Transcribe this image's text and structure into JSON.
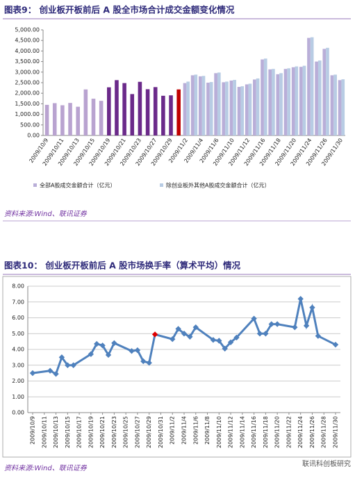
{
  "chart_data": [
    {
      "type": "bar",
      "title": "图表9：   创业板开板前后 A 股全市场合计成交金额变化情况",
      "source": "资料来源:Wind、联讯证券",
      "categories": [
        "2009/10/9",
        null,
        "2009/10/11",
        null,
        "2009/10/13",
        null,
        "2009/10/15",
        null,
        "2009/10/19",
        null,
        "2009/10/21",
        null,
        "2009/10/23",
        null,
        "2009/10/27",
        null,
        "2009/10/29",
        null,
        "2009/11/2",
        null,
        "2009/11/4",
        null,
        "2009/11/6",
        null,
        "2009/11/10",
        null,
        "2009/11/12",
        null,
        "2009/11/16",
        null,
        "2009/11/18",
        null,
        "2009/11/20",
        null,
        "2009/11/24",
        null,
        "2009/11/26",
        null,
        "2009/11/30"
      ],
      "series": [
        {
          "name": "全部A股成交金额合计（亿元）",
          "color": "#b9aed8",
          "values": [
            1450,
            1530,
            1430,
            1540,
            1360,
            2180,
            1740,
            1640,
            2280,
            2620,
            2480,
            1960,
            2540,
            2190,
            2290,
            1880,
            1900,
            2180,
            2480,
            2850,
            2800,
            2500,
            2950,
            2520,
            2600,
            2300,
            2420,
            2650,
            3600,
            3130,
            2900,
            3150,
            3230,
            3250,
            4620,
            3500,
            4100,
            2850,
            2620
          ],
          "point_colors": [
            "#b9a3d0",
            "#b9a3d0",
            "#b9a3d0",
            "#b9a3d0",
            "#b9a3d0",
            "#b9a3d0",
            "#b9a3d0",
            "#b9a3d0",
            "#6b2a8a",
            "#6b2a8a",
            "#6b2a8a",
            "#6b2a8a",
            "#6b2a8a",
            "#6b2a8a",
            "#6b2a8a",
            "#6b2a8a",
            "#6b2a8a",
            "#c00000",
            "#b9aed8",
            "#b9aed8",
            "#b9aed8",
            "#b9aed8",
            "#b9aed8",
            "#b9aed8",
            "#b9aed8",
            "#b9aed8",
            "#b9aed8",
            "#b9aed8",
            "#b9aed8",
            "#b9aed8",
            "#b9aed8",
            "#b9aed8",
            "#b9aed8",
            "#b9aed8",
            "#b9aed8",
            "#b9aed8",
            "#b9aed8",
            "#b9aed8",
            "#b9aed8"
          ]
        },
        {
          "name": "除创业板外其他A股成交金额合计（亿元）",
          "color": "#b8cce4",
          "values": [
            null,
            null,
            null,
            null,
            null,
            null,
            null,
            null,
            null,
            null,
            null,
            null,
            null,
            null,
            null,
            null,
            null,
            null,
            2550,
            2880,
            2820,
            2530,
            2980,
            2550,
            2630,
            2330,
            2450,
            2700,
            3640,
            3150,
            2950,
            3180,
            3270,
            3300,
            4650,
            3550,
            4150,
            2880,
            2660
          ]
        }
      ],
      "ylim": [
        0,
        5000
      ],
      "yticks": [
        {
          "value": 0,
          "label": "0.00"
        },
        {
          "value": 500,
          "label": "500.00"
        },
        {
          "value": 1000,
          "label": "1,000.00"
        },
        {
          "value": 1500,
          "label": "1,500.00"
        },
        {
          "value": 2000,
          "label": "2,000.00"
        },
        {
          "value": 2500,
          "label": "2,500.00"
        },
        {
          "value": 3000,
          "label": "3,000.00"
        },
        {
          "value": 3500,
          "label": "3,500.00"
        },
        {
          "value": 4000,
          "label": "4,000.00"
        },
        {
          "value": 4500,
          "label": "4,500.00"
        },
        {
          "value": 5000,
          "label": "5,000.00"
        }
      ],
      "grid": false
    },
    {
      "type": "line",
      "title": "图表10：   创业板开板前后 A 股市场换手率（算术平均）情况",
      "source": "资料来源:Wind、联讯证券",
      "x": [
        "2009/10/9",
        "2009/10/12",
        "2009/10/13",
        "2009/10/14",
        "2009/10/15",
        "2009/10/16",
        "2009/10/19",
        "2009/10/20",
        "2009/10/21",
        "2009/10/22",
        "2009/10/23",
        "2009/10/26",
        "2009/10/27",
        "2009/10/28",
        "2009/10/29",
        "2009/10/30",
        "2009/11/2",
        "2009/11/3",
        "2009/11/4",
        "2009/11/5",
        "2009/11/6",
        "2009/11/9",
        "2009/11/10",
        "2009/11/11",
        "2009/11/12",
        "2009/11/13",
        "2009/11/16",
        "2009/11/17",
        "2009/11/18",
        "2009/11/19",
        "2009/11/20",
        "2009/11/23",
        "2009/11/24",
        "2009/11/25",
        "2009/11/26",
        "2009/11/27",
        "2009/11/30"
      ],
      "series": [
        {
          "color": "#4f81bd",
          "values": [
            2.5,
            2.65,
            2.45,
            3.5,
            3.0,
            3.0,
            3.7,
            4.35,
            4.25,
            3.65,
            4.4,
            3.9,
            3.95,
            3.25,
            3.15,
            4.95,
            4.65,
            5.3,
            5.0,
            4.8,
            5.4,
            4.6,
            4.55,
            4.05,
            4.45,
            4.75,
            5.95,
            5.0,
            5.0,
            5.6,
            5.6,
            5.4,
            7.2,
            5.5,
            6.65,
            4.85,
            4.3
          ]
        }
      ],
      "highlight": {
        "x": "2009/10/30",
        "color": "#e00000"
      },
      "xlim": [
        "2009/10/9",
        "2009/11/30"
      ],
      "xticks": [
        "2009/10/9",
        "2009/10/11",
        "2009/10/13",
        "2009/10/15",
        "2009/10/17",
        "2009/10/19",
        "2009/10/21",
        "2009/10/23",
        "2009/10/25",
        "2009/10/27",
        "2009/10/29",
        "2009/10/31",
        "2009/11/2",
        "2009/11/4",
        "2009/11/6",
        "2009/11/8",
        "2009/11/10",
        "2009/11/12",
        "2009/11/14",
        "2009/11/16",
        "2009/11/18",
        "2009/11/20",
        "2009/11/22",
        "2009/11/24",
        "2009/11/26",
        "2009/11/28",
        "2009/11/30"
      ],
      "ylim": [
        0,
        8
      ],
      "yticks": [
        {
          "value": 0,
          "label": "0.00"
        },
        {
          "value": 1,
          "label": "1.00"
        },
        {
          "value": 2,
          "label": "2.00"
        },
        {
          "value": 3,
          "label": "3.00"
        },
        {
          "value": 4,
          "label": "4.00"
        },
        {
          "value": 5,
          "label": "5.00"
        },
        {
          "value": 6,
          "label": "6.00"
        },
        {
          "value": 7,
          "label": "7.00"
        },
        {
          "value": 8,
          "label": "8.00"
        }
      ],
      "grid": true
    }
  ],
  "watermark": "联讯科创板研究"
}
